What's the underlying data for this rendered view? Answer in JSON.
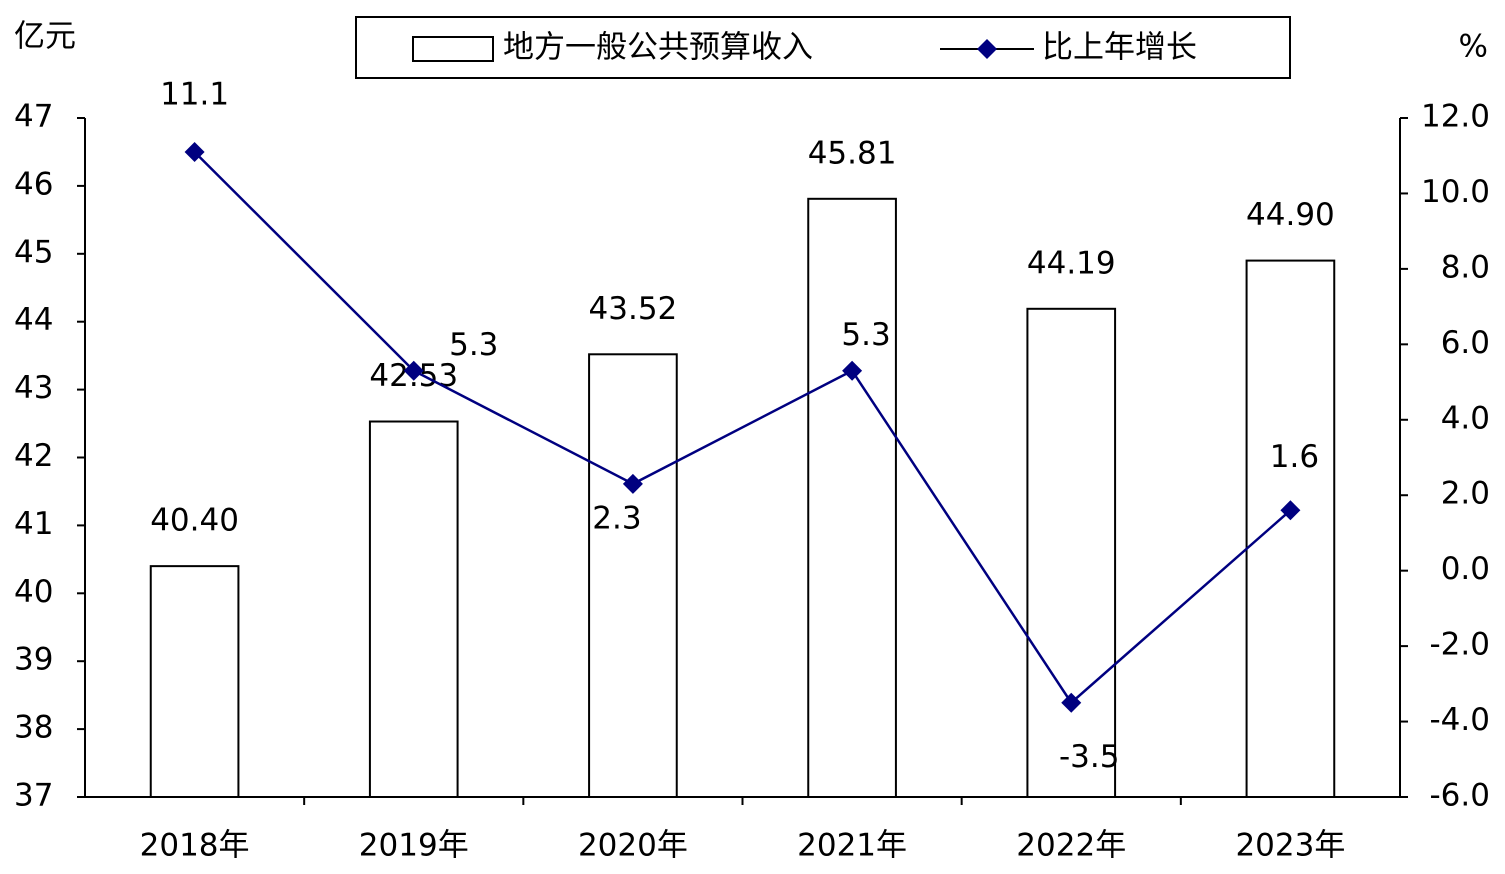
{
  "chart_data": {
    "type": "bar-line",
    "ylabel": "亿元",
    "y2label": "%",
    "categories": [
      "2018年",
      "2019年",
      "2020年",
      "2021年",
      "2022年",
      "2023年"
    ],
    "series": [
      {
        "name": "地方一般公共预算收入",
        "type": "bar",
        "color": "#ffffff",
        "values": [
          40.4,
          42.53,
          43.52,
          45.81,
          44.19,
          44.9
        ],
        "value_labels": [
          "40.40",
          "42.53",
          "43.52",
          "45.81",
          "44.19",
          "44.90"
        ]
      },
      {
        "name": "比上年增长",
        "type": "line",
        "axis": "y2",
        "color": "#000080",
        "values": [
          11.1,
          5.3,
          2.3,
          5.3,
          -3.5,
          1.6
        ]
      }
    ],
    "ylim": [
      37,
      47
    ],
    "yticks": [
      37,
      38,
      39,
      40,
      41,
      42,
      43,
      44,
      45,
      46,
      47
    ],
    "y2lim": [
      -6,
      12
    ],
    "y2ticks": [
      {
        "value": -6,
        "label": "-6.0"
      },
      {
        "value": -4,
        "label": "-4.0"
      },
      {
        "value": -2,
        "label": "-2.0"
      },
      {
        "value": 0,
        "label": "0.0"
      },
      {
        "value": 2,
        "label": "2.0"
      },
      {
        "value": 4,
        "label": "4.0"
      },
      {
        "value": 6,
        "label": "6.0"
      },
      {
        "value": 8,
        "label": "8.0"
      },
      {
        "value": 10,
        "label": "10.0"
      },
      {
        "value": 12,
        "label": "12.0"
      }
    ],
    "grid": false,
    "legend": "top"
  }
}
